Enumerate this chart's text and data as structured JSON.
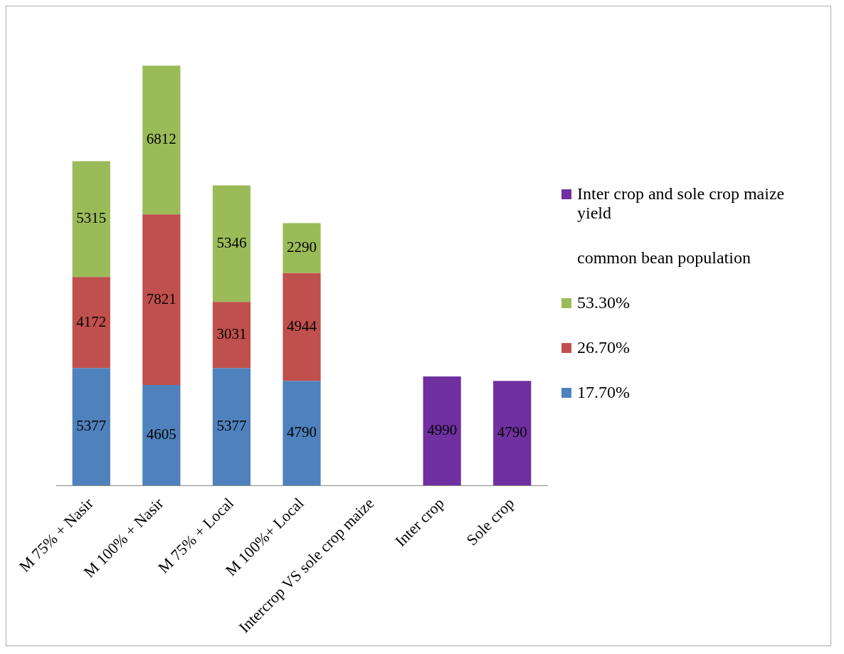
{
  "chart_data": {
    "type": "bar",
    "stacked": true,
    "data_labels": true,
    "legend": "right",
    "grid": false,
    "categories": [
      "M 75% + Nasir",
      "M 100% + Nasir",
      "M 75% + Local",
      "M 100%+ Local",
      "Intercrop VS sole crop maize",
      "Inter crop",
      "Sole crop"
    ],
    "series": [
      {
        "name": "17.70%",
        "color": "#4f81bd",
        "values": [
          5377,
          4605,
          5377,
          4790,
          null,
          null,
          null
        ]
      },
      {
        "name": "26.70%",
        "color": "#c0504d",
        "values": [
          4172,
          7821,
          3031,
          4944,
          null,
          null,
          null
        ]
      },
      {
        "name": "53.30%",
        "color": "#9bbb59",
        "values": [
          5315,
          6812,
          5346,
          2290,
          null,
          null,
          null
        ]
      },
      {
        "name": "common bean population",
        "color": null,
        "values": [
          null,
          null,
          null,
          null,
          null,
          null,
          null
        ]
      },
      {
        "name": "Inter crop and sole crop maize yield",
        "color": "#7030a0",
        "values": [
          null,
          null,
          null,
          null,
          null,
          4990,
          4790
        ]
      }
    ]
  }
}
